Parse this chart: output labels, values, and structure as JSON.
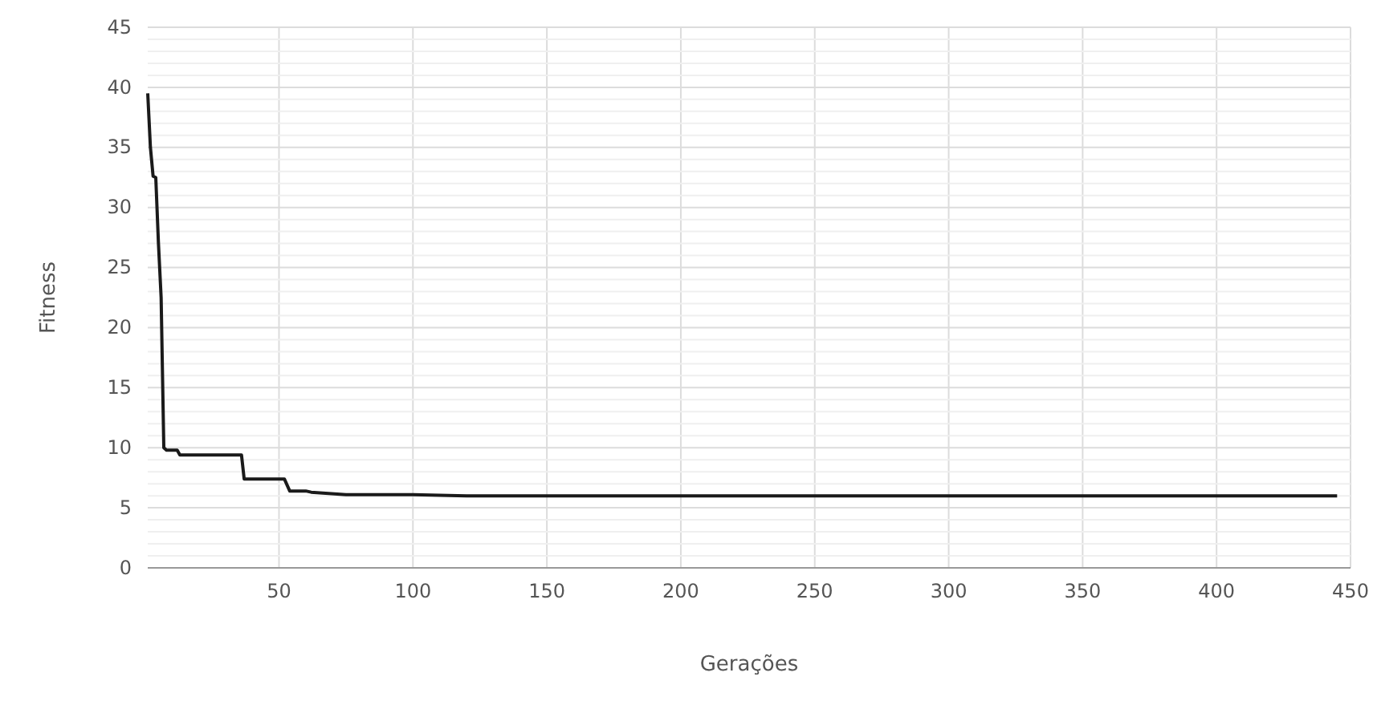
{
  "chart_data": {
    "type": "line",
    "xlabel": "Gerações",
    "ylabel": "Fitness",
    "x": [
      1,
      2,
      3,
      4,
      5,
      6,
      7,
      8,
      12,
      13,
      36,
      37,
      52,
      54,
      60,
      62,
      75,
      90,
      100,
      120,
      445
    ],
    "series": [
      {
        "color": "#1a1a1a",
        "values": [
          39.5,
          35,
          32.6,
          32.5,
          27,
          22.5,
          10,
          9.8,
          9.8,
          9.4,
          9.4,
          7.4,
          7.4,
          6.4,
          6.4,
          6.3,
          6.1,
          6.1,
          6.1,
          6.0,
          6.0
        ]
      }
    ],
    "xlim": [
      1,
      450
    ],
    "xticks": [
      50,
      100,
      150,
      200,
      250,
      300,
      350,
      400,
      450
    ],
    "ylim": [
      0,
      45
    ],
    "yticks": [
      0,
      {
        "value": 1,
        "label": null
      },
      {
        "value": 2,
        "label": null
      },
      {
        "value": 3,
        "label": null
      },
      {
        "value": 4,
        "label": null
      },
      5,
      {
        "value": 6,
        "label": null
      },
      {
        "value": 7,
        "label": null
      },
      {
        "value": 8,
        "label": null
      },
      {
        "value": 9,
        "label": null
      },
      10,
      {
        "value": 11,
        "label": null
      },
      {
        "value": 12,
        "label": null
      },
      {
        "value": 13,
        "label": null
      },
      {
        "value": 14,
        "label": null
      },
      15,
      {
        "value": 16,
        "label": null
      },
      {
        "value": 17,
        "label": null
      },
      {
        "value": 18,
        "label": null
      },
      {
        "value": 19,
        "label": null
      },
      20,
      {
        "value": 21,
        "label": null
      },
      {
        "value": 22,
        "label": null
      },
      {
        "value": 23,
        "label": null
      },
      {
        "value": 24,
        "label": null
      },
      25,
      {
        "value": 26,
        "label": null
      },
      {
        "value": 27,
        "label": null
      },
      {
        "value": 28,
        "label": null
      },
      {
        "value": 29,
        "label": null
      },
      30,
      {
        "value": 31,
        "label": null
      },
      {
        "value": 32,
        "label": null
      },
      {
        "value": 33,
        "label": null
      },
      {
        "value": 34,
        "label": null
      },
      35,
      {
        "value": 36,
        "label": null
      },
      {
        "value": 37,
        "label": null
      },
      {
        "value": 38,
        "label": null
      },
      {
        "value": 39,
        "label": null
      },
      40,
      {
        "value": 41,
        "label": null
      },
      {
        "value": 42,
        "label": null
      },
      {
        "value": 43,
        "label": null
      },
      {
        "value": 44,
        "label": null
      },
      45
    ],
    "grid": true,
    "marker": "none",
    "line_style": "solid"
  }
}
